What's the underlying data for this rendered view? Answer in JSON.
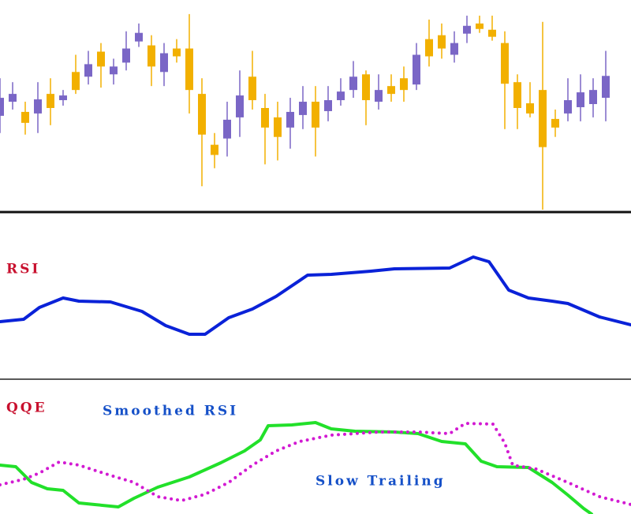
{
  "chart_data": [
    {
      "type": "candlestick",
      "up_color": "#7a66c6",
      "down_color": "#f2b000",
      "ylim": [
        0,
        270
      ],
      "open": [
        122,
        140,
        127,
        125,
        150,
        142,
        178,
        172,
        204,
        175,
        190,
        217,
        212,
        178,
        208,
        208,
        150,
        85,
        93,
        120,
        172,
        132,
        120,
        107,
        123,
        140,
        128,
        142,
        155,
        175,
        140,
        160,
        170,
        162,
        220,
        225,
        200,
        227,
        240,
        232,
        215,
        165,
        138,
        155,
        118,
        125,
        133,
        137,
        145
      ],
      "high": [
        170,
        165,
        140,
        165,
        170,
        155,
        200,
        205,
        215,
        195,
        230,
        240,
        225,
        215,
        220,
        252,
        170,
        100,
        140,
        180,
        205,
        150,
        140,
        145,
        160,
        160,
        160,
        170,
        192,
        180,
        175,
        175,
        185,
        215,
        245,
        240,
        230,
        250,
        250,
        250,
        230,
        175,
        165,
        242,
        130,
        170,
        175,
        170,
        205
      ],
      "low": [
        100,
        130,
        98,
        100,
        110,
        135,
        150,
        162,
        158,
        162,
        180,
        210,
        160,
        160,
        190,
        125,
        32,
        55,
        70,
        95,
        130,
        60,
        65,
        80,
        105,
        70,
        115,
        135,
        145,
        110,
        130,
        140,
        140,
        155,
        185,
        195,
        190,
        215,
        228,
        218,
        105,
        105,
        120,
        2,
        95,
        115,
        115,
        120,
        115
      ],
      "close": [
        145,
        150,
        113,
        143,
        132,
        148,
        155,
        188,
        185,
        185,
        208,
        228,
        185,
        202,
        198,
        155,
        98,
        72,
        117,
        148,
        142,
        107,
        95,
        127,
        140,
        107,
        142,
        153,
        172,
        142,
        155,
        150,
        155,
        200,
        198,
        208,
        215,
        237,
        233,
        223,
        163,
        132,
        125,
        82,
        107,
        142,
        152,
        155,
        173
      ]
    },
    {
      "type": "line",
      "title": "RSI",
      "xlim": [
        0,
        800
      ],
      "ylim": [
        0,
        210
      ],
      "x": [
        0,
        30,
        50,
        80,
        100,
        140,
        180,
        210,
        240,
        260,
        290,
        320,
        350,
        390,
        420,
        470,
        500,
        570,
        600,
        620,
        645,
        670,
        700,
        720,
        760,
        800
      ],
      "series": [
        {
          "color": "#0a22d8",
          "values": [
            72,
            75,
            90,
            102,
            98,
            97,
            85,
            67,
            56,
            56,
            77,
            88,
            104,
            131,
            132,
            136,
            139,
            140,
            154,
            148,
            112,
            102,
            98,
            95,
            78,
            68
          ]
        }
      ]
    },
    {
      "type": "line",
      "title": "QQE",
      "xlim": [
        0,
        800
      ],
      "ylim": [
        0,
        170
      ],
      "series": [
        {
          "name": "Smoothed RSI",
          "color": "#22e02a",
          "dash": "solid",
          "x": [
            0,
            20,
            40,
            60,
            80,
            100,
            120,
            150,
            170,
            200,
            240,
            280,
            310,
            330,
            340,
            370,
            400,
            420,
            450,
            500,
            530,
            560,
            590,
            610,
            630,
            670,
            700,
            720,
            740,
            750
          ],
          "values": [
            62,
            60,
            40,
            32,
            30,
            14,
            12,
            9,
            20,
            34,
            47,
            65,
            80,
            94,
            112,
            113,
            116,
            108,
            105,
            104,
            102,
            92,
            89,
            67,
            60,
            59,
            40,
            24,
            7,
            0
          ]
        },
        {
          "name": "Slow Trailing",
          "color": "#d21ad2",
          "dash": "dotted",
          "x": [
            0,
            30,
            50,
            75,
            100,
            140,
            170,
            200,
            230,
            260,
            290,
            320,
            350,
            380,
            420,
            480,
            530,
            570,
            590,
            625,
            640,
            650,
            680,
            720,
            760,
            800
          ],
          "values": [
            37,
            44,
            52,
            66,
            62,
            49,
            40,
            22,
            17,
            25,
            40,
            62,
            80,
            92,
            100,
            104,
            104,
            102,
            115,
            114,
            90,
            62,
            57,
            40,
            22,
            12
          ]
        }
      ]
    }
  ]
}
